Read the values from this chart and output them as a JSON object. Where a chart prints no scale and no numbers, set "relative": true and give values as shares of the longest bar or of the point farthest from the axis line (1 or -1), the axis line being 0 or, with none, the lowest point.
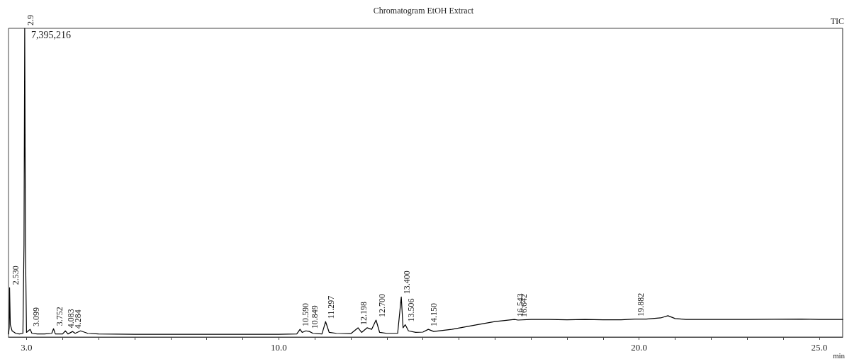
{
  "chart_data": {
    "type": "line",
    "title": "Chromatogram EtOH Extract",
    "xlabel": "min",
    "relative": true,
    "color": "#000000",
    "x": [
      2.5,
      2.52,
      2.53,
      2.55,
      2.6,
      2.7,
      2.8,
      2.9,
      2.93,
      2.95,
      2.97,
      3.0,
      3.05,
      3.1,
      3.15,
      3.3,
      3.5,
      3.7,
      3.75,
      3.8,
      4.0,
      4.08,
      4.15,
      4.28,
      4.35,
      4.5,
      4.7,
      5.0,
      6,
      7,
      8,
      9,
      10,
      10.5,
      10.59,
      10.65,
      10.75,
      10.85,
      10.95,
      11.2,
      11.3,
      11.4,
      11.6,
      12.0,
      12.2,
      12.3,
      12.45,
      12.58,
      12.7,
      12.8,
      13.0,
      13.3,
      13.4,
      13.45,
      13.51,
      13.6,
      13.8,
      14.0,
      14.15,
      14.3,
      14.8,
      15.5,
      16.0,
      16.54,
      16.64,
      17.0,
      17.5,
      18.0,
      18.5,
      19.0,
      19.5,
      19.88,
      20.2,
      20.6,
      20.8,
      21.0,
      21.3,
      22,
      23,
      24.5,
      25,
      25.65
    ],
    "values": [
      0.01,
      0.03,
      0.16,
      0.04,
      0.02,
      0.012,
      0.01,
      0.012,
      0.3,
      1.0,
      0.3,
      0.015,
      0.02,
      0.025,
      0.012,
      0.01,
      0.01,
      0.012,
      0.027,
      0.01,
      0.01,
      0.02,
      0.01,
      0.018,
      0.012,
      0.02,
      0.012,
      0.01,
      0.009,
      0.009,
      0.009,
      0.009,
      0.009,
      0.01,
      0.025,
      0.015,
      0.02,
      0.018,
      0.012,
      0.01,
      0.05,
      0.015,
      0.012,
      0.011,
      0.03,
      0.015,
      0.03,
      0.025,
      0.055,
      0.015,
      0.012,
      0.012,
      0.13,
      0.03,
      0.04,
      0.02,
      0.015,
      0.016,
      0.025,
      0.018,
      0.025,
      0.04,
      0.05,
      0.057,
      0.055,
      0.057,
      0.057,
      0.056,
      0.057,
      0.056,
      0.056,
      0.058,
      0.058,
      0.062,
      0.069,
      0.06,
      0.057,
      0.057,
      0.057,
      0.058,
      0.057,
      0.057
    ],
    "xlim": [
      2.5,
      25.65
    ],
    "xticks": [
      {
        "value": 3,
        "label": "3.0"
      },
      {
        "value": 4,
        "label": null
      },
      {
        "value": 5,
        "label": null
      },
      {
        "value": 6,
        "label": null
      },
      {
        "value": 7,
        "label": null
      },
      {
        "value": 8,
        "label": null
      },
      {
        "value": 9,
        "label": null
      },
      {
        "value": 10,
        "label": "10.0"
      },
      {
        "value": 11,
        "label": null
      },
      {
        "value": 12,
        "label": null
      },
      {
        "value": 13,
        "label": null
      },
      {
        "value": 14,
        "label": null
      },
      {
        "value": 15,
        "label": null
      },
      {
        "value": 16,
        "label": null
      },
      {
        "value": 17,
        "label": null
      },
      {
        "value": 18,
        "label": null
      },
      {
        "value": 19,
        "label": null
      },
      {
        "value": 20,
        "label": "20.0"
      },
      {
        "value": 21,
        "label": null
      },
      {
        "value": 22,
        "label": null
      },
      {
        "value": 23,
        "label": null
      },
      {
        "value": 24,
        "label": null
      },
      {
        "value": 25,
        "label": "25.0"
      }
    ],
    "grid": false,
    "marker": "none",
    "line_style": "solid",
    "annotations": [
      "7,395,216",
      "TIC",
      {
        "text": "2.530",
        "x": 2.53,
        "y": 0.16
      },
      {
        "text": "2.9",
        "x": 2.95,
        "y": 1.0
      },
      {
        "text": "3.099",
        "x": 3.1,
        "y": 0.025
      },
      {
        "text": "3.752",
        "x": 3.75,
        "y": 0.027
      },
      {
        "text": "4.083",
        "x": 4.08,
        "y": 0.02
      },
      {
        "text": "4.284",
        "x": 4.28,
        "y": 0.018
      },
      {
        "text": "10.590",
        "x": 10.59,
        "y": 0.025
      },
      {
        "text": "10.849",
        "x": 10.85,
        "y": 0.018
      },
      {
        "text": "11.297",
        "x": 11.3,
        "y": 0.05
      },
      {
        "text": "12.198",
        "x": 12.2,
        "y": 0.03
      },
      {
        "text": "12.700",
        "x": 12.7,
        "y": 0.055
      },
      {
        "text": "13.400",
        "x": 13.4,
        "y": 0.13
      },
      {
        "text": "13.506",
        "x": 13.51,
        "y": 0.04
      },
      {
        "text": "14.150",
        "x": 14.15,
        "y": 0.025
      },
      {
        "text": "16.543",
        "x": 16.54,
        "y": 0.057
      },
      {
        "text": "16.642",
        "x": 16.64,
        "y": 0.055
      },
      {
        "text": "19.882",
        "x": 19.88,
        "y": 0.058
      }
    ]
  }
}
